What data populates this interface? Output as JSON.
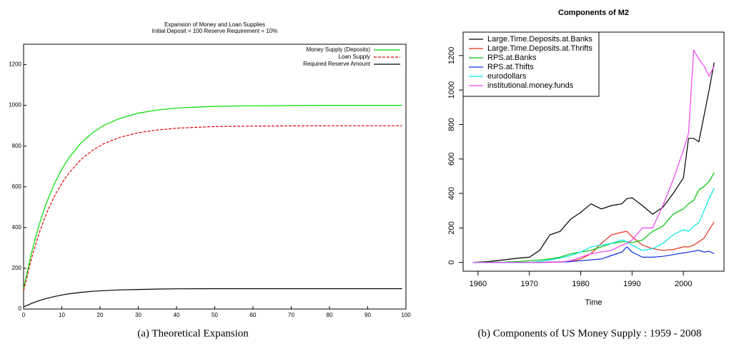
{
  "chart_data": [
    {
      "type": "line",
      "title": "Expansion of Money and Loan Supplies",
      "subtitle": "Initial Deposit = 100 Reserve Requirement = 10%",
      "caption": "(a)  Theoretical Expansion",
      "x": [
        0,
        2,
        4,
        6,
        8,
        10,
        12,
        15,
        18,
        21,
        25,
        30,
        35,
        40,
        50,
        60,
        70,
        80,
        90,
        99
      ],
      "series": [
        {
          "name": "Money Supply (Deposits)",
          "color": "#00dd00",
          "dash": "solid",
          "values": [
            100,
            271,
            410,
            522,
            613,
            686,
            746,
            815,
            865,
            902,
            935,
            962,
            977,
            987,
            995,
            998,
            999,
            1000,
            1000,
            1000
          ]
        },
        {
          "name": "Loan Supply",
          "color": "#e00000",
          "dash": "dashed",
          "values": [
            90,
            244,
            369,
            470,
            552,
            617,
            671,
            734,
            779,
            812,
            842,
            866,
            879,
            888,
            896,
            898,
            899,
            900,
            900,
            900
          ]
        },
        {
          "name": "Required Reserve Amount",
          "color": "#000000",
          "dash": "solid",
          "values": [
            10,
            27,
            41,
            52,
            61,
            69,
            75,
            82,
            87,
            90,
            94,
            96,
            98,
            99,
            100,
            100,
            100,
            100,
            100,
            100
          ]
        }
      ],
      "xlim": [
        0,
        100
      ],
      "xticks": [
        0,
        10,
        20,
        30,
        40,
        50,
        60,
        70,
        80,
        90,
        100
      ],
      "ylim": [
        0,
        1300
      ],
      "yticks": [
        0,
        200,
        400,
        600,
        800,
        1000,
        1200
      ],
      "legend": "top-right"
    },
    {
      "type": "line",
      "title": "Components of M2",
      "xlabel": "Time",
      "caption": "(b)  Components of US Money Supply : 1959 - 2008",
      "x": [
        1959,
        1962,
        1965,
        1968,
        1970,
        1972,
        1974,
        1976,
        1978,
        1980,
        1982,
        1984,
        1986,
        1988,
        1989,
        1990,
        1992,
        1994,
        1996,
        1998,
        2000,
        2001,
        2002,
        2003,
        2004,
        2005,
        2006
      ],
      "series": [
        {
          "name": "Large.Time.Deposits.at.Banks",
          "color": "#000000",
          "dash": "solid",
          "values": [
            0,
            5,
            15,
            25,
            30,
            70,
            160,
            180,
            250,
            290,
            340,
            310,
            330,
            340,
            370,
            375,
            330,
            280,
            320,
            400,
            490,
            720,
            720,
            700,
            850,
            1000,
            1160
          ]
        },
        {
          "name": "Large.Time.Deposits.at.Thrifts",
          "color": "#e8301c",
          "dash": "solid",
          "values": [
            0,
            0,
            0,
            0,
            0,
            0,
            2,
            3,
            5,
            20,
            50,
            110,
            160,
            175,
            180,
            150,
            100,
            80,
            70,
            75,
            90,
            90,
            100,
            120,
            140,
            190,
            235
          ]
        },
        {
          "name": "RPS.at.Banks",
          "color": "#00c000",
          "dash": "solid",
          "values": [
            0,
            1,
            2,
            5,
            10,
            14,
            20,
            30,
            50,
            60,
            70,
            90,
            110,
            120,
            120,
            115,
            130,
            180,
            210,
            280,
            310,
            340,
            360,
            420,
            440,
            470,
            520
          ]
        },
        {
          "name": "RPS.at.Thifts",
          "color": "#1030e0",
          "dash": "solid",
          "values": [
            0,
            0,
            0,
            0,
            0,
            0,
            1,
            2,
            5,
            10,
            15,
            20,
            40,
            60,
            90,
            60,
            30,
            30,
            35,
            45,
            55,
            60,
            65,
            70,
            60,
            65,
            50
          ]
        },
        {
          "name": "eurodollars",
          "color": "#00e8e8",
          "dash": "solid",
          "values": [
            0,
            0,
            0,
            0,
            0,
            5,
            15,
            25,
            40,
            60,
            90,
            100,
            110,
            130,
            120,
            100,
            70,
            80,
            110,
            160,
            190,
            180,
            210,
            230,
            300,
            370,
            430
          ]
        },
        {
          "name": "institutional.money.funds",
          "color": "#f040f0",
          "dash": "solid",
          "values": [
            0,
            0,
            0,
            0,
            0,
            0,
            0,
            2,
            10,
            30,
            50,
            60,
            70,
            100,
            110,
            130,
            200,
            200,
            330,
            480,
            650,
            750,
            1230,
            1180,
            1140,
            1080,
            1140
          ]
        }
      ],
      "xlim": [
        1957.1,
        2007.9
      ],
      "xticks": [
        1960,
        1970,
        1980,
        1990,
        2000
      ],
      "ylim": [
        -51,
        1336
      ],
      "yticks": [
        0,
        200,
        400,
        600,
        800,
        1000,
        1200
      ],
      "legend": "top-left"
    }
  ]
}
